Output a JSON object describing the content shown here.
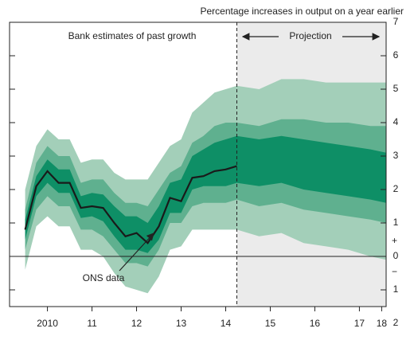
{
  "chart_data": {
    "type": "fan",
    "title": "Percentage increases in output on a year earlier",
    "annotations": {
      "past": "Bank estimates of past growth",
      "projection": "Projection",
      "ons": "ONS data"
    },
    "sign_labels": [
      "+",
      "−"
    ],
    "projection_start": 2014.75,
    "projection_color": "#ebebeb",
    "x": [
      2010.0,
      2010.25,
      2010.5,
      2010.75,
      2011.0,
      2011.25,
      2011.5,
      2011.75,
      2012.0,
      2012.25,
      2012.5,
      2012.75,
      2013.0,
      2013.25,
      2013.5,
      2013.75,
      2014.0,
      2014.25,
      2014.5,
      2014.75,
      2015.25,
      2015.75,
      2016.25,
      2016.75,
      2017.25,
      2017.75,
      2018.1
    ],
    "bands": [
      {
        "color": "#a3cfb9",
        "lower": [
          -0.4,
          0.9,
          1.2,
          0.9,
          0.9,
          0.2,
          0.2,
          0.0,
          -0.5,
          -0.9,
          -1.0,
          -1.1,
          -0.6,
          0.2,
          0.3,
          0.8,
          0.8,
          0.8,
          0.8,
          0.8,
          0.6,
          0.7,
          0.4,
          0.3,
          0.2,
          0.0,
          -0.1
        ],
        "upper": [
          2.0,
          3.3,
          3.8,
          3.5,
          3.5,
          2.8,
          2.9,
          2.9,
          2.5,
          2.3,
          2.3,
          2.3,
          2.8,
          3.3,
          3.5,
          4.3,
          4.6,
          4.9,
          5.0,
          5.1,
          5.0,
          5.3,
          5.3,
          5.2,
          5.2,
          5.2,
          5.2
        ]
      },
      {
        "color": "#5fb08f",
        "lower": [
          0.2,
          1.4,
          1.8,
          1.5,
          1.5,
          0.8,
          0.8,
          0.6,
          0.2,
          -0.2,
          -0.2,
          -0.3,
          0.2,
          1.0,
          1.0,
          1.5,
          1.6,
          1.6,
          1.6,
          1.7,
          1.5,
          1.6,
          1.4,
          1.3,
          1.2,
          1.1,
          1.0
        ],
        "upper": [
          1.4,
          2.8,
          3.3,
          3.0,
          3.0,
          2.2,
          2.3,
          2.3,
          1.9,
          1.6,
          1.6,
          1.5,
          2.0,
          2.5,
          2.7,
          3.4,
          3.6,
          3.9,
          4.0,
          4.0,
          3.9,
          4.1,
          4.1,
          4.0,
          4.0,
          3.9,
          3.9
        ]
      },
      {
        "color": "#0e8f66",
        "lower": [
          0.5,
          1.8,
          2.2,
          1.9,
          1.9,
          1.15,
          1.2,
          1.05,
          0.6,
          0.2,
          0.2,
          0.1,
          0.5,
          1.3,
          1.3,
          2.0,
          2.1,
          2.1,
          2.1,
          2.2,
          2.1,
          2.2,
          2.0,
          1.9,
          1.8,
          1.7,
          1.6
        ],
        "upper": [
          1.1,
          2.4,
          2.9,
          2.6,
          2.6,
          1.8,
          1.9,
          1.85,
          1.5,
          1.2,
          1.2,
          1.0,
          1.5,
          2.2,
          2.3,
          3.0,
          3.2,
          3.4,
          3.5,
          3.6,
          3.5,
          3.6,
          3.5,
          3.4,
          3.3,
          3.2,
          3.1
        ]
      }
    ],
    "line": {
      "color": "#1a1a1a",
      "values": [
        0.8,
        2.1,
        2.55,
        2.2,
        2.2,
        1.45,
        1.5,
        1.45,
        1.0,
        0.6,
        0.7,
        0.4,
        0.9,
        1.75,
        1.65,
        2.35,
        2.4,
        2.55,
        2.6,
        2.7,
        null,
        null,
        null,
        null,
        null,
        null,
        null
      ]
    },
    "xlim": [
      2009.65,
      2018.1
    ],
    "xticks": [
      {
        "value": 2010.5,
        "label": "2010"
      },
      {
        "value": 2011.5,
        "label": "11"
      },
      {
        "value": 2012.5,
        "label": "12"
      },
      {
        "value": 2013.5,
        "label": "13"
      },
      {
        "value": 2014.5,
        "label": "14"
      },
      {
        "value": 2015.5,
        "label": "15"
      },
      {
        "value": 2016.5,
        "label": "16"
      },
      {
        "value": 2017.5,
        "label": "17"
      },
      {
        "value": 2018.0,
        "label": "18"
      }
    ],
    "ylim": [
      -1.5,
      7
    ],
    "yticks": [
      {
        "value": -2,
        "label": "2"
      },
      {
        "value": -1,
        "label": "1"
      },
      0,
      1,
      2,
      3,
      4,
      5,
      6,
      7
    ]
  }
}
